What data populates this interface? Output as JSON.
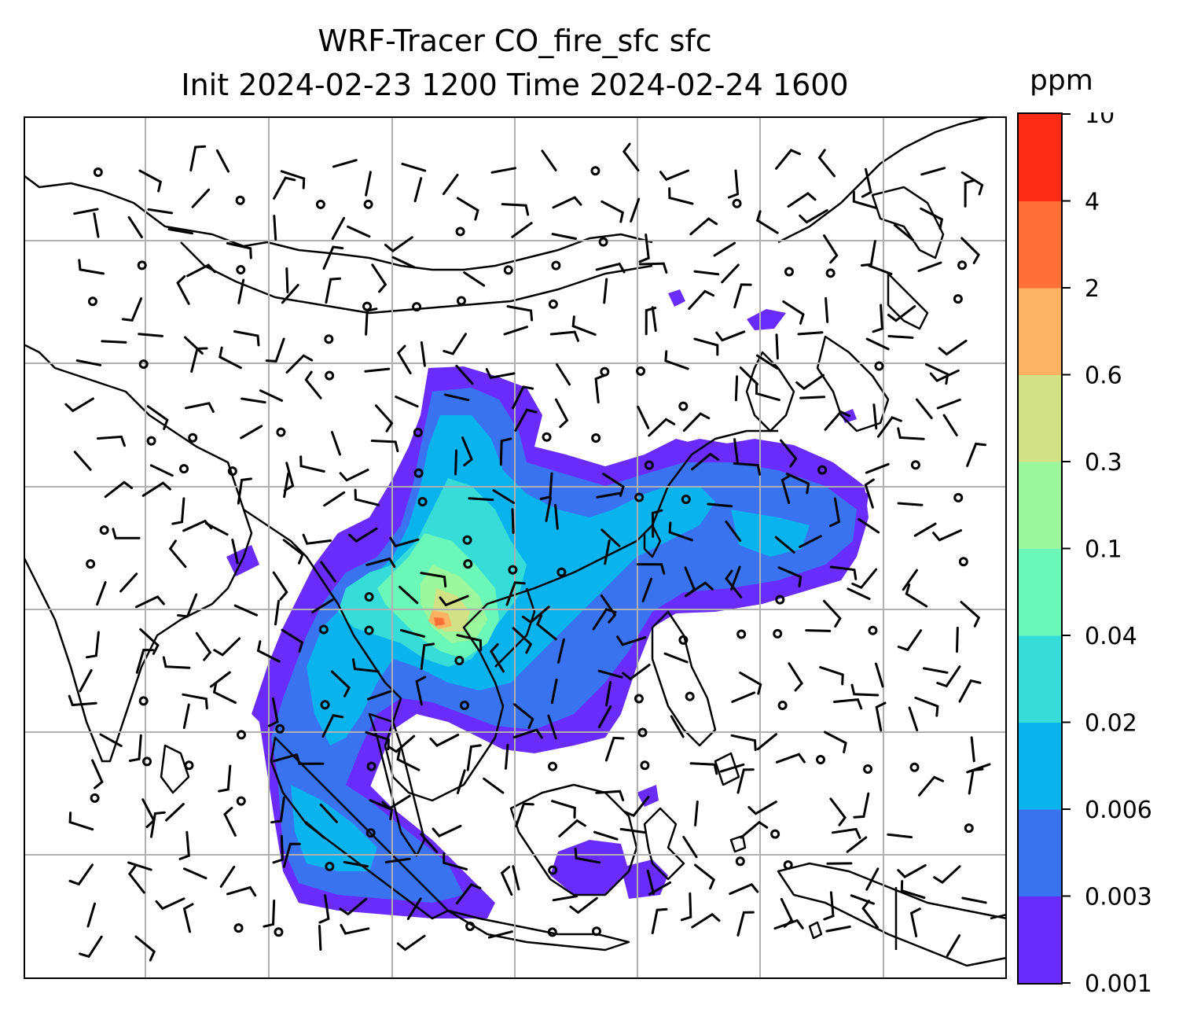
{
  "figure": {
    "title_line1": "WRF-Tracer CO_fire_sfc sfc",
    "title_line2": "Init 2024-02-23 1200 Time 2024-02-24 1600"
  },
  "colorbar": {
    "unit": "ppm",
    "levels": [
      "0.001",
      "0.003",
      "0.006",
      "0.02",
      "0.04",
      "0.1",
      "0.3",
      "0.6",
      "2",
      "4",
      "10"
    ],
    "colors": [
      "#6a2cfa",
      "#3a73f0",
      "#08b3ee",
      "#36dcd8",
      "#6af7b7",
      "#9bf79b",
      "#d1e183",
      "#fdb264",
      "#ff7039",
      "#fc2b16"
    ]
  },
  "map": {
    "field": "CO_fire_sfc",
    "level": "sfc",
    "overlay": "wind barbs",
    "gridlines": true
  }
}
